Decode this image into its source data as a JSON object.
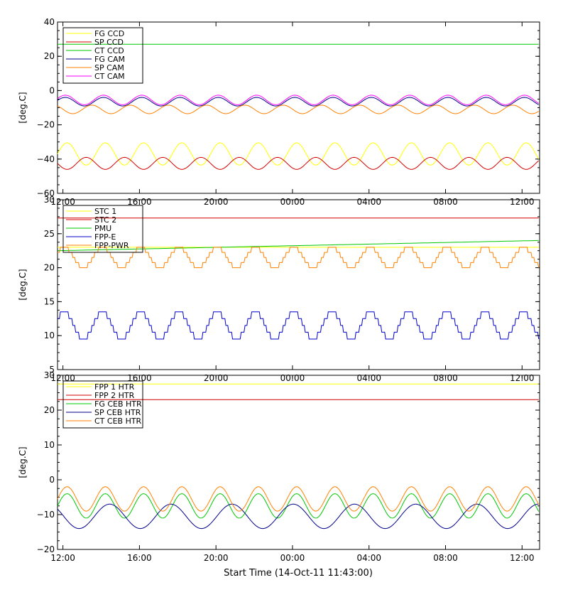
{
  "xlabel": "Start Time (14-Oct-11 11:43:00)",
  "x_ticks": [
    "12:00",
    "16:00",
    "20:00",
    "00:00",
    "04:00",
    "08:00",
    "12:00"
  ],
  "x_range": [
    "14-Oct-11 11:43:00",
    "15-Oct-11 12:53:00"
  ],
  "chart_data": [
    {
      "type": "line",
      "ylabel": "[deg.C]",
      "ylim": [
        -60,
        40
      ],
      "y_ticks": [
        "40",
        "20",
        "0",
        "−20",
        "−40",
        "−60"
      ],
      "legend_placement": "top-left",
      "grid": false,
      "series": [
        {
          "name": "FG CCD",
          "color": "#ffff00",
          "kind": "sine",
          "base": -37,
          "amp": 6.5,
          "period_h": 2.0,
          "phase": 0.0
        },
        {
          "name": "SP CCD",
          "color": "#d40000",
          "kind": "sine",
          "base": -42.5,
          "amp": 3.5,
          "period_h": 2.0,
          "phase": 3.14
        },
        {
          "name": "CT CCD",
          "color": "#00c800",
          "kind": "flat",
          "value": 27
        },
        {
          "name": "FG CAM",
          "color": "#00008b",
          "kind": "sine",
          "base": -6.5,
          "amp": 2.5,
          "period_h": 2.0,
          "phase": 0.3
        },
        {
          "name": "SP CAM",
          "color": "#ff8000",
          "kind": "sine",
          "base": -11,
          "amp": 2.5,
          "period_h": 2.0,
          "phase": 2.2
        },
        {
          "name": "CT CAM",
          "color": "#ff00ff",
          "kind": "sine",
          "base": -5.5,
          "amp": 2.8,
          "period_h": 2.0,
          "phase": 0.3
        }
      ]
    },
    {
      "type": "line",
      "ylabel": "[deg.C]",
      "ylim": [
        5,
        30
      ],
      "y_ticks": [
        "30",
        "25",
        "20",
        "15",
        "10",
        "5"
      ],
      "legend_placement": "top-left",
      "grid": false,
      "series": [
        {
          "name": "STC 1",
          "color": "#ffff00",
          "kind": "flat",
          "value": 23
        },
        {
          "name": "STC 2",
          "color": "#d40000",
          "kind": "flat",
          "value": 27.3
        },
        {
          "name": "PMU",
          "color": "#00c800",
          "kind": "ramp",
          "from": 22.5,
          "to": 24
        },
        {
          "name": "FPP-E",
          "color": "#0000cc",
          "kind": "step",
          "base": 11.5,
          "amp": 2,
          "period_h": 2.0,
          "phase": 0.5
        },
        {
          "name": "FPP-PWR",
          "color": "#ff8000",
          "kind": "step",
          "base": 21.5,
          "amp": 1.5,
          "period_h": 2.0,
          "phase": 0.5
        }
      ]
    },
    {
      "type": "line",
      "ylabel": "[deg.C]",
      "ylim": [
        -20,
        30
      ],
      "y_ticks": [
        "30",
        "20",
        "10",
        "0",
        "−10",
        "−20"
      ],
      "legend_placement": "top-left",
      "grid": false,
      "series": [
        {
          "name": "FPP 1 HTR",
          "color": "#ffff00",
          "kind": "flat",
          "value": 27.5
        },
        {
          "name": "FPP 2 HTR",
          "color": "#d40000",
          "kind": "flat",
          "value": 23
        },
        {
          "name": "FG CEB HTR",
          "color": "#00c800",
          "kind": "sine",
          "base": -7.5,
          "amp": 3.5,
          "period_h": 2.0,
          "phase": 0.0
        },
        {
          "name": "SP CEB HTR",
          "color": "#00008b",
          "kind": "sine",
          "base": -10.5,
          "amp": 3.5,
          "period_h": 3.2,
          "phase": 2.5
        },
        {
          "name": "CT CEB HTR",
          "color": "#ff8000",
          "kind": "sine",
          "base": -5.5,
          "amp": 3.5,
          "period_h": 2.0,
          "phase": 0.0
        }
      ]
    }
  ]
}
